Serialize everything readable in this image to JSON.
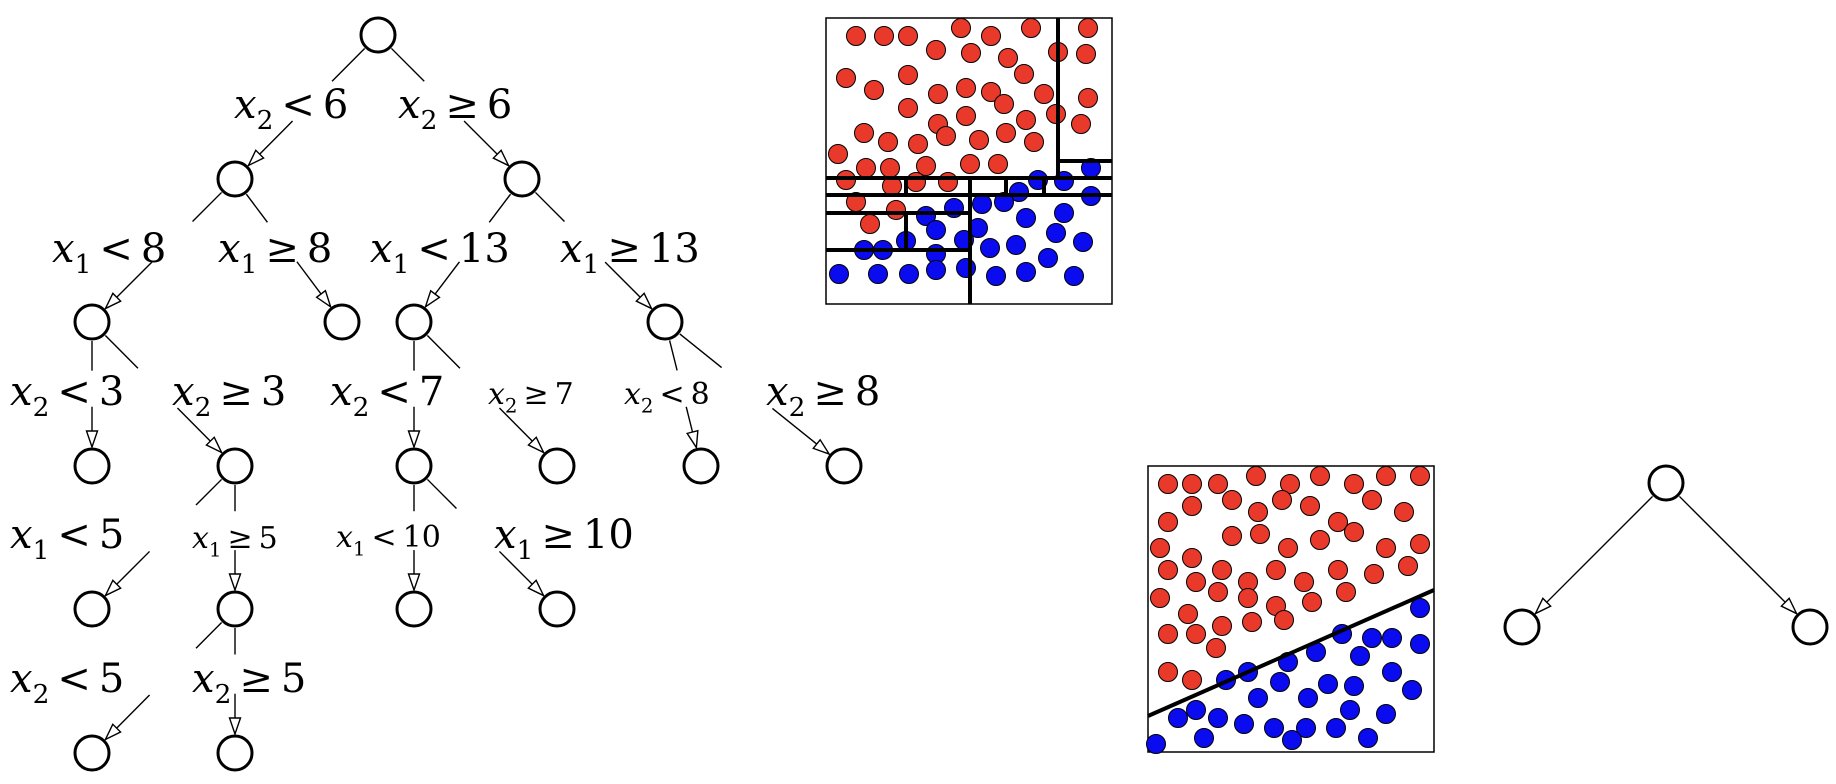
{
  "tree": {
    "nodes": [
      {
        "id": "root"
      },
      {
        "id": "n1"
      },
      {
        "id": "n2"
      },
      {
        "id": "n3"
      },
      {
        "id": "n4"
      },
      {
        "id": "n5"
      },
      {
        "id": "n6"
      },
      {
        "id": "n7"
      },
      {
        "id": "n8"
      },
      {
        "id": "n9"
      },
      {
        "id": "n10"
      },
      {
        "id": "n11"
      },
      {
        "id": "n12"
      },
      {
        "id": "n13"
      },
      {
        "id": "n14"
      },
      {
        "id": "n15"
      },
      {
        "id": "n16"
      },
      {
        "id": "n17"
      },
      {
        "id": "n18"
      }
    ],
    "edges": [
      {
        "from": "root",
        "to": "n1",
        "label": {
          "var": "x",
          "sub": "2",
          "op": "<",
          "val": "6"
        }
      },
      {
        "from": "root",
        "to": "n2",
        "label": {
          "var": "x",
          "sub": "2",
          "op": "≥",
          "val": "6"
        }
      },
      {
        "from": "n1",
        "to": "n3",
        "label": {
          "var": "x",
          "sub": "1",
          "op": "<",
          "val": "8"
        }
      },
      {
        "from": "n1",
        "to": "n4",
        "label": {
          "var": "x",
          "sub": "1",
          "op": "≥",
          "val": "8"
        }
      },
      {
        "from": "n2",
        "to": "n5",
        "label": {
          "var": "x",
          "sub": "1",
          "op": "<",
          "val": "13"
        }
      },
      {
        "from": "n2",
        "to": "n6",
        "label": {
          "var": "x",
          "sub": "1",
          "op": "≥",
          "val": "13"
        }
      },
      {
        "from": "n3",
        "to": "n7",
        "label": {
          "var": "x",
          "sub": "2",
          "op": "<",
          "val": "3"
        }
      },
      {
        "from": "n3",
        "to": "n8",
        "label": {
          "var": "x",
          "sub": "2",
          "op": "≥",
          "val": "3"
        }
      },
      {
        "from": "n5",
        "to": "n9",
        "label": {
          "var": "x",
          "sub": "2",
          "op": "<",
          "val": "7"
        }
      },
      {
        "from": "n5",
        "to": "n10",
        "label": {
          "var": "x",
          "sub": "2",
          "op": "≥",
          "val": "7"
        }
      },
      {
        "from": "n6",
        "to": "n11",
        "label": {
          "var": "x",
          "sub": "2",
          "op": "<",
          "val": "8"
        }
      },
      {
        "from": "n6",
        "to": "n12",
        "label": {
          "var": "x",
          "sub": "2",
          "op": "≥",
          "val": "8"
        }
      },
      {
        "from": "n8",
        "to": "n13",
        "label": {
          "var": "x",
          "sub": "1",
          "op": "<",
          "val": "5"
        }
      },
      {
        "from": "n8",
        "to": "n14",
        "label": {
          "var": "x",
          "sub": "1",
          "op": "≥",
          "val": "5"
        }
      },
      {
        "from": "n9",
        "to": "n15",
        "label": {
          "var": "x",
          "sub": "1",
          "op": "<",
          "val": "10"
        }
      },
      {
        "from": "n9",
        "to": "n16",
        "label": {
          "var": "x",
          "sub": "1",
          "op": "≥",
          "val": "10"
        }
      },
      {
        "from": "n14",
        "to": "n17",
        "label": {
          "var": "x",
          "sub": "2",
          "op": "<",
          "val": "5"
        }
      },
      {
        "from": "n14",
        "to": "n18",
        "label": {
          "var": "x",
          "sub": "2",
          "op": "≥",
          "val": "5"
        }
      }
    ]
  },
  "small_tree": {
    "nodes": [
      {
        "id": "s_root"
      },
      {
        "id": "s_left"
      },
      {
        "id": "s_right"
      }
    ],
    "edges": [
      {
        "from": "s_root",
        "to": "s_left"
      },
      {
        "from": "s_root",
        "to": "s_right"
      }
    ]
  },
  "colors": {
    "class_a": "#e8392b",
    "class_b": "#0b0bf0",
    "line": "#000000",
    "background": "#ffffff"
  },
  "classes": [
    "red",
    "blue"
  ],
  "panels": [
    {
      "id": "axis-aligned-partition",
      "boundary": "axis-aligned rectangles"
    },
    {
      "id": "oblique-partition",
      "boundary": "single oblique line"
    }
  ]
}
